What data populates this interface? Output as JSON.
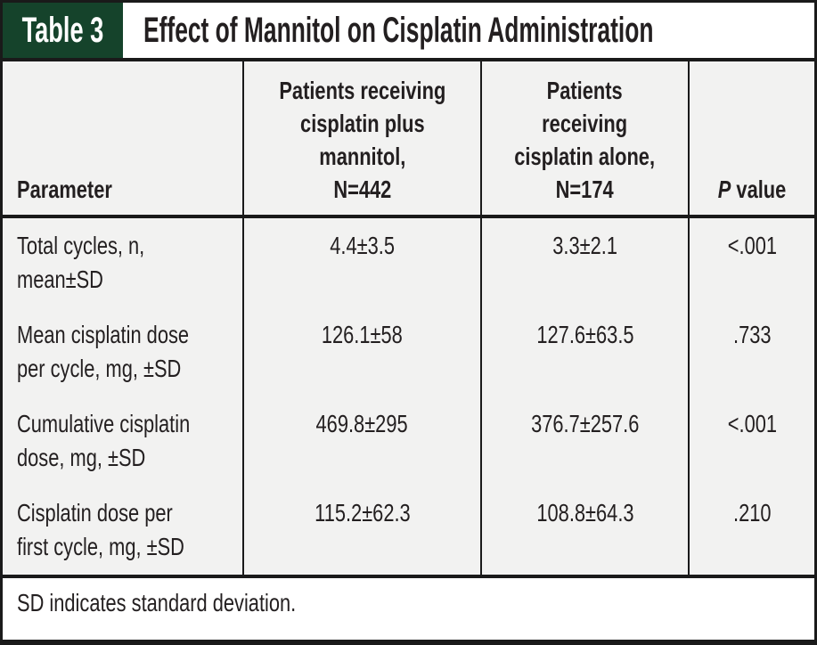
{
  "colors": {
    "tag_green": "#15432b",
    "cell_background": "#f2f2f1",
    "border_black": "#1a1a1a",
    "text_black": "#231f20"
  },
  "title_bar": {
    "tag": "Table 3",
    "title": "Effect of Mannitol on Cisplatin Administration"
  },
  "table": {
    "header": {
      "parameter": "Parameter",
      "col_mannitol": "Patients receiving\ncisplatin plus\nmannitol,\nN=442",
      "col_alone": "Patients\nreceiving\ncisplatin alone,\nN=174",
      "p_italic": "P",
      "p_rest": " value"
    },
    "rows": [
      {
        "param": "Total cycles, n,\nmean±SD",
        "mannitol": "4.4±3.5",
        "alone": "3.3±2.1",
        "p": "<.001"
      },
      {
        "param": "Mean cisplatin dose\nper cycle, mg, ±SD",
        "mannitol": "126.1±58",
        "alone": "127.6±63.5",
        "p": ".733"
      },
      {
        "param": "Cumulative cisplatin\ndose, mg, ±SD",
        "mannitol": "469.8±295",
        "alone": "376.7±257.6",
        "p": "<.001"
      },
      {
        "param": "Cisplatin dose per\nfirst cycle, mg, ±SD",
        "mannitol": "115.2±62.3",
        "alone": "108.8±64.3",
        "p": ".210"
      }
    ],
    "footnote": "SD indicates standard deviation."
  }
}
